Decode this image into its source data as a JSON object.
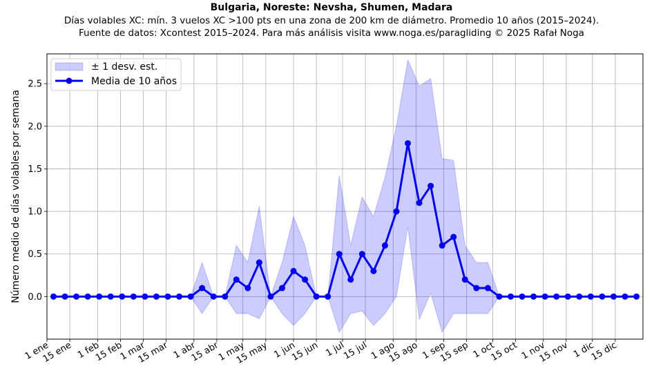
{
  "chart_data": {
    "type": "line",
    "title": "Bulgaria, Noreste: Nevsha, Shumen, Madara",
    "subtitle_lines": [
      "Días volables XC: mín. 3 vuelos XC >100 pts en una zona de 200 km de diámetro. Promedio 10 años (2015–2024).",
      "Fuente de datos: Xcontest 2015–2024. Para más análisis visita www.noga.es/paragliding © 2025 Rafał Noga"
    ],
    "ylabel": "Número medio de días volables por semana",
    "xlabel": "",
    "ylim": [
      -0.5,
      2.85
    ],
    "yticks": [
      0.0,
      0.5,
      1.0,
      1.5,
      2.0,
      2.5
    ],
    "ytick_labels": [
      "0.0",
      "0.5",
      "1.0",
      "1.5",
      "2.0",
      "2.5"
    ],
    "xticks": [
      1,
      15,
      32,
      46,
      60,
      74,
      91,
      105,
      121,
      135,
      152,
      166,
      182,
      196,
      213,
      227,
      244,
      258,
      274,
      288,
      305,
      319,
      335,
      349
    ],
    "xtick_labels": [
      "1 ene",
      "15 ene",
      "1 feb",
      "15 feb",
      "1 mar",
      "15 mar",
      "1 abr",
      "15 abr",
      "1 may",
      "15 may",
      "1 jun",
      "15 jun",
      "1 jul",
      "15 jul",
      "1 ago",
      "15 ago",
      "1 sep",
      "15 sep",
      "1 oct",
      "15 oct",
      "1 nov",
      "15 nov",
      "1 dic",
      "15 dic"
    ],
    "xlim": [
      1,
      366
    ],
    "grid": true,
    "legend_position": "top-left",
    "x": [
      5,
      12,
      19,
      26,
      33,
      40,
      47,
      54,
      61,
      68,
      75,
      82,
      89,
      96,
      103,
      110,
      117,
      124,
      131,
      138,
      145,
      152,
      159,
      166,
      173,
      180,
      187,
      194,
      201,
      208,
      215,
      222,
      229,
      236,
      243,
      250,
      257,
      264,
      271,
      278,
      285,
      292,
      299,
      306,
      313,
      320,
      327,
      334,
      341,
      348,
      355,
      362
    ],
    "series": [
      {
        "name": "Media de 10 años",
        "color": "#0000ee",
        "values": [
          0,
          0,
          0,
          0,
          0,
          0,
          0,
          0,
          0,
          0,
          0,
          0,
          0,
          0.1,
          0,
          0,
          0.2,
          0.1,
          0.4,
          0,
          0.1,
          0.3,
          0.2,
          0,
          0,
          0.5,
          0.2,
          0.5,
          0.3,
          0.6,
          1.0,
          1.8,
          1.1,
          1.3,
          0.6,
          0.7,
          0.2,
          0.1,
          0.1,
          0,
          0,
          0,
          0,
          0,
          0,
          0,
          0,
          0,
          0,
          0,
          0,
          0
        ]
      },
      {
        "name": "± 1 desv. est.",
        "color": "#c8c8ff",
        "upper": [
          0,
          0,
          0,
          0,
          0,
          0,
          0,
          0,
          0,
          0,
          0,
          0,
          0,
          0.4,
          0,
          0,
          0.6,
          0.4,
          1.06,
          0,
          0.4,
          0.94,
          0.6,
          0,
          0,
          1.42,
          0.6,
          1.17,
          0.94,
          1.4,
          2.0,
          2.78,
          2.47,
          2.56,
          1.62,
          1.6,
          0.6,
          0.4,
          0.4,
          0,
          0,
          0,
          0,
          0,
          0,
          0,
          0,
          0,
          0,
          0,
          0,
          0
        ],
        "lower": [
          0,
          0,
          0,
          0,
          0,
          0,
          0,
          0,
          0,
          0,
          0,
          0,
          0,
          -0.2,
          0,
          0,
          -0.2,
          -0.2,
          -0.26,
          0,
          -0.2,
          -0.34,
          -0.2,
          0,
          0,
          -0.42,
          -0.2,
          -0.17,
          -0.34,
          -0.2,
          0,
          0.82,
          -0.27,
          0.04,
          -0.42,
          -0.2,
          -0.2,
          -0.2,
          -0.2,
          0,
          0,
          0,
          0,
          0,
          0,
          0,
          0,
          0,
          0,
          0,
          0,
          0
        ]
      }
    ]
  }
}
